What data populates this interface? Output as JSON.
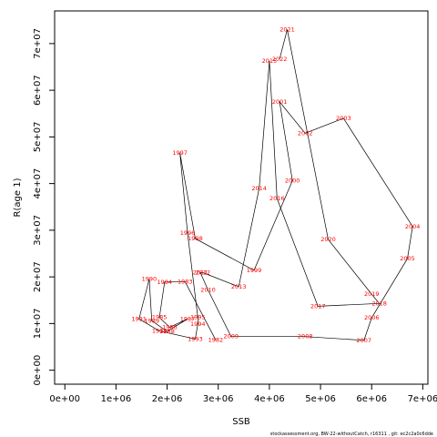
{
  "chart_data": {
    "type": "line",
    "xlabel": "SSB",
    "ylabel": "R(age 1)",
    "xlim": [
      -200000,
      7100000
    ],
    "ylim": [
      -3000000,
      77000000
    ],
    "x_ticks": [
      {
        "value": 0,
        "label": "0e+00"
      },
      {
        "value": 1000000,
        "label": "1e+06"
      },
      {
        "value": 2000000,
        "label": "2e+06"
      },
      {
        "value": 3000000,
        "label": "3e+06"
      },
      {
        "value": 4000000,
        "label": "4e+06"
      },
      {
        "value": 5000000,
        "label": "5e+06"
      },
      {
        "value": 6000000,
        "label": "6e+06"
      },
      {
        "value": 7000000,
        "label": "7e+06"
      }
    ],
    "y_ticks": [
      {
        "value": 0,
        "label": "0e+00"
      },
      {
        "value": 10000000,
        "label": "1e+07"
      },
      {
        "value": 20000000,
        "label": "2e+07"
      },
      {
        "value": 30000000,
        "label": "3e+07"
      },
      {
        "value": 40000000,
        "label": "4e+07"
      },
      {
        "value": 50000000,
        "label": "5e+07"
      },
      {
        "value": 60000000,
        "label": "6e+07"
      },
      {
        "value": 70000000,
        "label": "7e+07"
      }
    ],
    "series": [
      {
        "line_color": "#000000",
        "label_color": "#ff0000",
        "points": [
          {
            "year": "1982",
            "ssb": 2950000,
            "r": 6500000
          },
          {
            "year": "1983",
            "ssb": 2350000,
            "r": 19000000
          },
          {
            "year": "1984",
            "ssb": 1950000,
            "r": 18900000
          },
          {
            "year": "1985",
            "ssb": 1850000,
            "r": 11300000
          },
          {
            "year": "1986",
            "ssb": 2050000,
            "r": 9200000
          },
          {
            "year": "1987",
            "ssb": 2400000,
            "r": 11000000
          },
          {
            "year": "1988",
            "ssb": 2000000,
            "r": 8300000
          },
          {
            "year": "1989",
            "ssb": 1700000,
            "r": 10600000
          },
          {
            "year": "1990",
            "ssb": 1650000,
            "r": 19500000
          },
          {
            "year": "1991",
            "ssb": 1450000,
            "r": 11000000
          },
          {
            "year": "1992",
            "ssb": 1850000,
            "r": 8400000
          },
          {
            "year": "1993",
            "ssb": 2550000,
            "r": 6700000
          },
          {
            "year": "1994",
            "ssb": 2600000,
            "r": 9900000
          },
          {
            "year": "1995",
            "ssb": 2600000,
            "r": 11300000
          },
          {
            "year": "1996",
            "ssb": 2400000,
            "r": 29400000
          },
          {
            "year": "1997",
            "ssb": 2250000,
            "r": 46600000
          },
          {
            "year": "1998",
            "ssb": 2550000,
            "r": 28200000
          },
          {
            "year": "1999",
            "ssb": 3700000,
            "r": 21400000
          },
          {
            "year": "2000",
            "ssb": 4450000,
            "r": 40600000
          },
          {
            "year": "2001",
            "ssb": 4200000,
            "r": 57500000
          },
          {
            "year": "2002",
            "ssb": 4700000,
            "r": 50800000
          },
          {
            "year": "2003",
            "ssb": 5450000,
            "r": 54000000
          },
          {
            "year": "2004",
            "ssb": 6800000,
            "r": 30800000
          },
          {
            "year": "2005",
            "ssb": 6700000,
            "r": 23900000
          },
          {
            "year": "2006",
            "ssb": 6000000,
            "r": 11200000
          },
          {
            "year": "2007",
            "ssb": 5850000,
            "r": 6400000
          },
          {
            "year": "2008",
            "ssb": 4700000,
            "r": 7200000
          },
          {
            "year": "2009",
            "ssb": 3250000,
            "r": 7200000
          },
          {
            "year": "2010",
            "ssb": 2800000,
            "r": 17200000
          },
          {
            "year": "2011",
            "ssb": 2650000,
            "r": 20900000
          },
          {
            "year": "2012",
            "ssb": 2700000,
            "r": 20900000
          },
          {
            "year": "2013",
            "ssb": 3400000,
            "r": 17900000
          },
          {
            "year": "2014",
            "ssb": 3800000,
            "r": 39000000
          },
          {
            "year": "2015",
            "ssb": 4000000,
            "r": 66300000
          },
          {
            "year": "2016",
            "ssb": 4150000,
            "r": 36800000
          },
          {
            "year": "2017",
            "ssb": 4950000,
            "r": 13700000
          },
          {
            "year": "2018",
            "ssb": 6150000,
            "r": 14300000
          },
          {
            "year": "2019",
            "ssb": 6000000,
            "r": 16300000
          },
          {
            "year": "2020",
            "ssb": 5150000,
            "r": 28000000
          },
          {
            "year": "2021",
            "ssb": 4350000,
            "r": 73000000
          },
          {
            "year": "2022",
            "ssb": 4200000,
            "r": 66700000
          }
        ]
      }
    ]
  },
  "footer_text": "stockassessment.org, BW-22-withoutCatch, r16311 ,  git:  ec2c2a0c6dde"
}
